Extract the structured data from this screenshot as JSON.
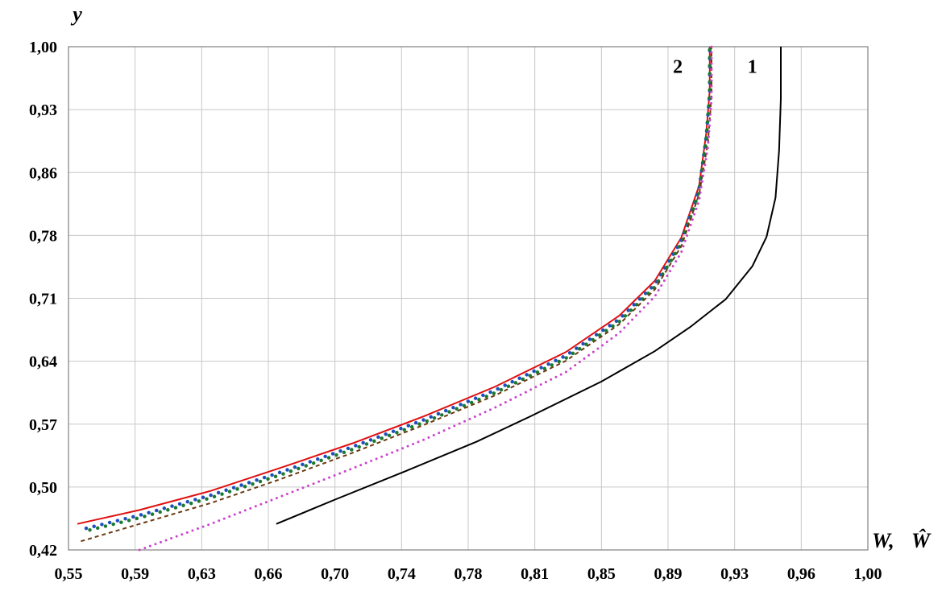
{
  "chart_data": {
    "type": "line",
    "title": "",
    "xlabel": "W,",
    "xlabel_hat": "Ŵ",
    "ylabel": "y",
    "xlim": [
      0.55,
      1.0
    ],
    "ylim": [
      0.42,
      1.0
    ],
    "grid": true,
    "x_ticks": [
      "0,55",
      "0,59",
      "0,63",
      "0,66",
      "0,70",
      "0,74",
      "0,78",
      "0,81",
      "0,85",
      "0,89",
      "0,93",
      "0,96",
      "1,00"
    ],
    "y_ticks": [
      "1,00",
      "0,93",
      "0,86",
      "0,78",
      "0,71",
      "0,64",
      "0,57",
      "0,50",
      "0,42"
    ],
    "curve_labels": [
      {
        "text": "2",
        "x": 0.893,
        "y": 0.97
      },
      {
        "text": "1",
        "x": 0.935,
        "y": 0.97
      }
    ],
    "series": [
      {
        "label": "1",
        "color": "#000000",
        "style": "solid",
        "points": [
          [
            0.667,
            0.45
          ],
          [
            0.7,
            0.478
          ],
          [
            0.74,
            0.511
          ],
          [
            0.78,
            0.545
          ],
          [
            0.81,
            0.574
          ],
          [
            0.85,
            0.614
          ],
          [
            0.88,
            0.649
          ],
          [
            0.9,
            0.677
          ],
          [
            0.92,
            0.709
          ],
          [
            0.935,
            0.747
          ],
          [
            0.943,
            0.781
          ],
          [
            0.948,
            0.826
          ],
          [
            0.95,
            0.88
          ],
          [
            0.951,
            0.94
          ],
          [
            0.951,
            1.0
          ]
        ]
      },
      {
        "color": "#e01010",
        "style": "solid",
        "points": [
          [
            0.555,
            0.45
          ],
          [
            0.59,
            0.466
          ],
          [
            0.63,
            0.488
          ],
          [
            0.67,
            0.515
          ],
          [
            0.71,
            0.543
          ],
          [
            0.75,
            0.574
          ],
          [
            0.79,
            0.608
          ],
          [
            0.83,
            0.648
          ],
          [
            0.86,
            0.69
          ],
          [
            0.88,
            0.73
          ],
          [
            0.895,
            0.78
          ],
          [
            0.905,
            0.84
          ],
          [
            0.909,
            0.9
          ],
          [
            0.911,
            0.95
          ],
          [
            0.911,
            1.0
          ]
        ]
      },
      {
        "color": "#1f4fbf",
        "style": "dots",
        "points": [
          [
            0.56,
            0.445
          ],
          [
            0.59,
            0.46
          ],
          [
            0.63,
            0.483
          ],
          [
            0.67,
            0.51
          ],
          [
            0.71,
            0.539
          ],
          [
            0.75,
            0.57
          ],
          [
            0.79,
            0.604
          ],
          [
            0.83,
            0.644
          ],
          [
            0.86,
            0.686
          ],
          [
            0.88,
            0.726
          ],
          [
            0.895,
            0.776
          ],
          [
            0.905,
            0.836
          ],
          [
            0.909,
            0.896
          ],
          [
            0.911,
            0.948
          ],
          [
            0.911,
            1.0
          ]
        ]
      },
      {
        "color": "#1a7a30",
        "style": "dots",
        "points": [
          [
            0.562,
            0.443
          ],
          [
            0.59,
            0.457
          ],
          [
            0.63,
            0.48
          ],
          [
            0.67,
            0.507
          ],
          [
            0.71,
            0.536
          ],
          [
            0.75,
            0.567
          ],
          [
            0.79,
            0.601
          ],
          [
            0.83,
            0.641
          ],
          [
            0.86,
            0.683
          ],
          [
            0.88,
            0.723
          ],
          [
            0.895,
            0.773
          ],
          [
            0.905,
            0.833
          ],
          [
            0.909,
            0.893
          ],
          [
            0.911,
            0.946
          ],
          [
            0.911,
            1.0
          ]
        ]
      },
      {
        "color": "#6b3a10",
        "style": "dashed",
        "points": [
          [
            0.557,
            0.43
          ],
          [
            0.59,
            0.45
          ],
          [
            0.63,
            0.474
          ],
          [
            0.67,
            0.502
          ],
          [
            0.71,
            0.532
          ],
          [
            0.75,
            0.564
          ],
          [
            0.79,
            0.598
          ],
          [
            0.83,
            0.638
          ],
          [
            0.86,
            0.68
          ],
          [
            0.88,
            0.72
          ],
          [
            0.895,
            0.77
          ],
          [
            0.905,
            0.83
          ],
          [
            0.91,
            0.89
          ],
          [
            0.912,
            0.944
          ],
          [
            0.912,
            1.0
          ]
        ]
      },
      {
        "color": "#cc44cc",
        "style": "dotted",
        "points": [
          [
            0.59,
            0.42
          ],
          [
            0.63,
            0.45
          ],
          [
            0.67,
            0.482
          ],
          [
            0.71,
            0.514
          ],
          [
            0.75,
            0.547
          ],
          [
            0.79,
            0.584
          ],
          [
            0.83,
            0.625
          ],
          [
            0.86,
            0.67
          ],
          [
            0.88,
            0.712
          ],
          [
            0.895,
            0.763
          ],
          [
            0.905,
            0.823
          ],
          [
            0.91,
            0.885
          ],
          [
            0.912,
            0.94
          ],
          [
            0.912,
            1.0
          ]
        ]
      }
    ]
  }
}
